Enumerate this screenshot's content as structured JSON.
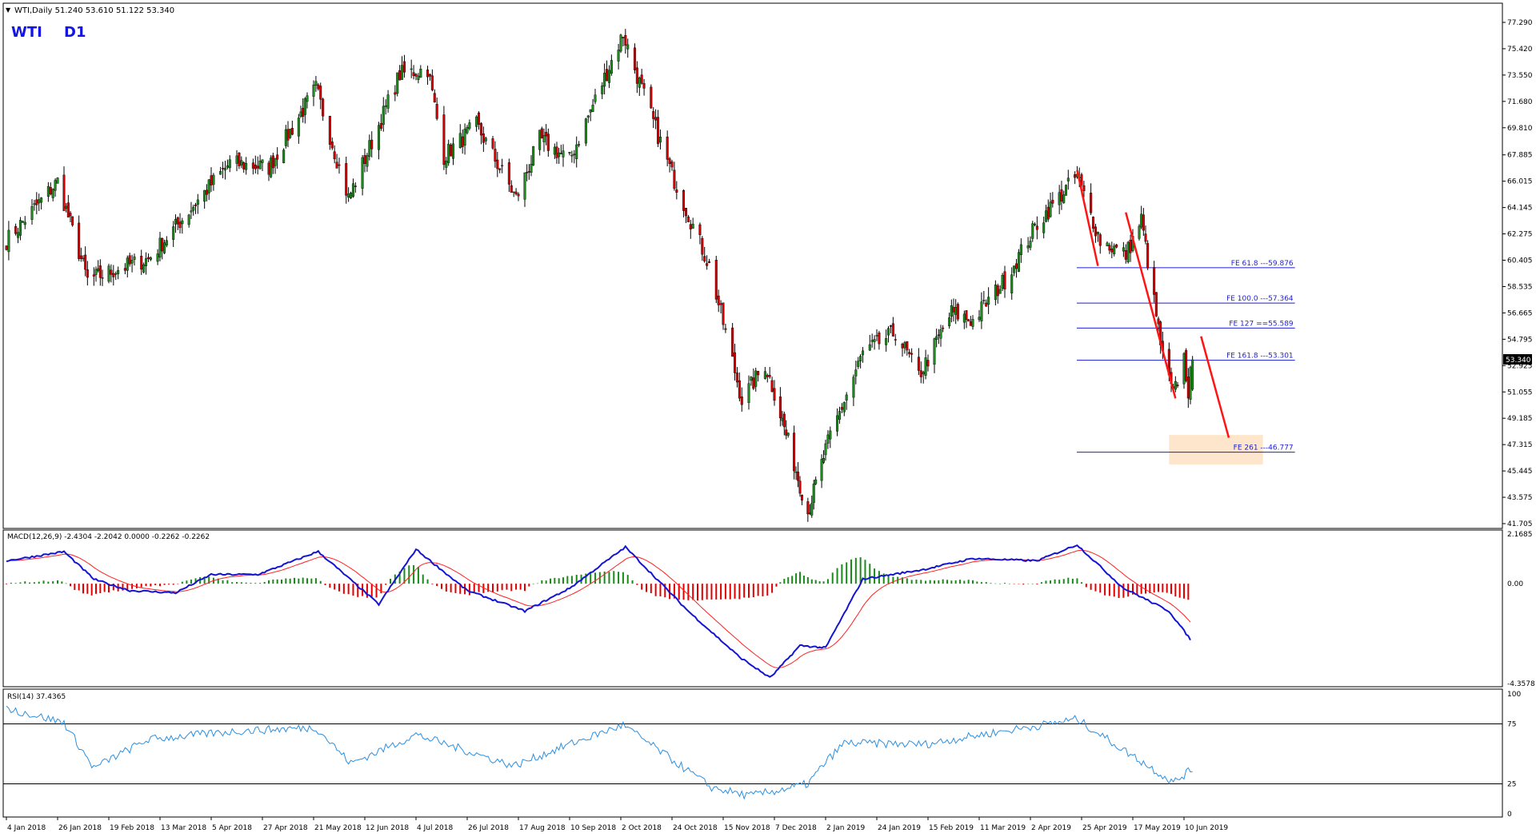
{
  "header": {
    "symbol_line": "WTI,Daily  51.240 53.610 51.122 53.340",
    "big_label_symbol": "WTI",
    "big_label_timeframe": "D1"
  },
  "colors": {
    "bull": "#1a8a1a",
    "bear": "#d40000",
    "wick": "#000000",
    "fib_line": "#1e1ed0",
    "fib_text": "#1e1ed0",
    "arrow": "#ff1414",
    "target_zone": "#fde2c3",
    "macd_line": "#1414d2",
    "signal_line": "#ff2020",
    "hist_pos": "#1a8a1a",
    "hist_neg": "#e00000",
    "rsi_line": "#2b8fe0",
    "label_blue": "#1414e6",
    "price_tag_bg": "#000000",
    "price_tag_fg": "#ffffff"
  },
  "price_axis": {
    "ticks": [
      "77.290",
      "75.420",
      "73.550",
      "71.680",
      "69.810",
      "67.885",
      "66.015",
      "64.145",
      "62.275",
      "60.405",
      "58.535",
      "56.665",
      "54.795",
      "52.925",
      "51.055",
      "49.185",
      "47.315",
      "45.445",
      "43.575",
      "41.705"
    ],
    "current_price": "53.340"
  },
  "time_axis": {
    "labels": [
      "4 Jan 2018",
      "26 Jan 2018",
      "19 Feb 2018",
      "13 Mar 2018",
      "5 Apr 2018",
      "27 Apr 2018",
      "21 May 2018",
      "12 Jun 2018",
      "4 Jul 2018",
      "26 Jul 2018",
      "17 Aug 2018",
      "10 Sep 2018",
      "2 Oct 2018",
      "24 Oct 2018",
      "15 Nov 2018",
      "7 Dec 2018",
      "2 Jan 2019",
      "24 Jan 2019",
      "15 Feb 2019",
      "11 Mar 2019",
      "2 Apr 2019",
      "25 Apr 2019",
      "17 May 2019",
      "10 Jun 2019"
    ]
  },
  "fib_levels": [
    {
      "label": "FE 61.8 ---59.876",
      "price": 59.876
    },
    {
      "label": "FE 100.0 ---57.364",
      "price": 57.364
    },
    {
      "label": "FE 127 ==55.589",
      "price": 55.589
    },
    {
      "label": "FE 161.8 ---53.301",
      "price": 53.301
    },
    {
      "label": "FE 261 ---46.777",
      "price": 46.777
    }
  ],
  "macd": {
    "label": "MACD(12,26,9) -2.4304 -2.2042 0.0000 -0.2262 -0.2262",
    "ticks": [
      "2.1685",
      "0.00",
      "-4.3578"
    ]
  },
  "rsi": {
    "label": "RSI(14) 37.4365",
    "ticks": [
      "100",
      "75",
      "25",
      "0"
    ]
  },
  "chart_data": {
    "type": "candlestick",
    "title": "WTI,Daily",
    "ylim": [
      41.705,
      77.29
    ],
    "last_bar": {
      "open": 51.24,
      "high": 53.61,
      "low": 51.122,
      "close": 53.34
    },
    "swing_points": [
      {
        "date": "2018-01-04",
        "price": 61.8
      },
      {
        "date": "2018-01-26",
        "price": 66.0
      },
      {
        "date": "2018-02-09",
        "price": 59.0
      },
      {
        "date": "2018-03-08",
        "price": 60.5
      },
      {
        "date": "2018-04-13",
        "price": 67.3
      },
      {
        "date": "2018-04-30",
        "price": 67.0
      },
      {
        "date": "2018-05-22",
        "price": 72.6
      },
      {
        "date": "2018-06-05",
        "price": 64.8
      },
      {
        "date": "2018-06-27",
        "price": 73.6
      },
      {
        "date": "2018-07-09",
        "price": 74.0
      },
      {
        "date": "2018-07-16",
        "price": 67.8
      },
      {
        "date": "2018-07-30",
        "price": 70.0
      },
      {
        "date": "2018-08-16",
        "price": 64.8
      },
      {
        "date": "2018-08-27",
        "price": 69.0
      },
      {
        "date": "2018-09-10",
        "price": 67.5
      },
      {
        "date": "2018-10-03",
        "price": 76.5
      },
      {
        "date": "2018-10-10",
        "price": 73.0
      },
      {
        "date": "2018-10-24",
        "price": 66.5
      },
      {
        "date": "2018-11-09",
        "price": 60.0
      },
      {
        "date": "2018-11-23",
        "price": 50.5
      },
      {
        "date": "2018-12-03",
        "price": 53.0
      },
      {
        "date": "2018-12-24",
        "price": 42.5
      },
      {
        "date": "2019-01-04",
        "price": 47.9
      },
      {
        "date": "2019-01-18",
        "price": 53.8
      },
      {
        "date": "2019-02-01",
        "price": 55.3
      },
      {
        "date": "2019-02-11",
        "price": 52.2
      },
      {
        "date": "2019-02-26",
        "price": 56.7
      },
      {
        "date": "2019-03-08",
        "price": 56.1
      },
      {
        "date": "2019-03-22",
        "price": 59.0
      },
      {
        "date": "2019-04-05",
        "price": 63.0
      },
      {
        "date": "2019-04-23",
        "price": 66.4
      },
      {
        "date": "2019-05-03",
        "price": 61.8
      },
      {
        "date": "2019-05-14",
        "price": 60.8
      },
      {
        "date": "2019-05-21",
        "price": 63.3
      },
      {
        "date": "2019-05-31",
        "price": 53.5
      },
      {
        "date": "2019-06-05",
        "price": 50.8
      },
      {
        "date": "2019-06-10",
        "price": 53.5
      },
      {
        "date": "2019-06-12",
        "price": 51.1
      },
      {
        "date": "2019-06-14",
        "price": 53.34
      }
    ],
    "projection_arrows": [
      {
        "from": {
          "date": "2019-04-23",
          "price": 66.8
        },
        "to": {
          "date": "2019-05-02",
          "price": 60.0
        }
      },
      {
        "from": {
          "date": "2019-05-14",
          "price": 63.8
        },
        "to": {
          "date": "2019-06-06",
          "price": 50.6
        }
      },
      {
        "from": {
          "date": "2019-06-18",
          "price": 55.0
        },
        "to": {
          "date": "2019-07-01",
          "price": 47.8
        }
      }
    ],
    "target_zone": {
      "from_date": "2019-06-03",
      "to_date": "2019-07-17",
      "price_top": 48.0,
      "price_bottom": 45.9
    },
    "macd_path": [
      {
        "date": "2018-01-04",
        "macd": 1.0
      },
      {
        "date": "2018-01-29",
        "macd": 1.4
      },
      {
        "date": "2018-02-12",
        "macd": 0.2
      },
      {
        "date": "2018-02-28",
        "macd": -0.3
      },
      {
        "date": "2018-03-20",
        "macd": -0.4
      },
      {
        "date": "2018-04-05",
        "macd": 0.4
      },
      {
        "date": "2018-04-25",
        "macd": 0.4
      },
      {
        "date": "2018-05-23",
        "macd": 1.4
      },
      {
        "date": "2018-06-18",
        "macd": -0.9
      },
      {
        "date": "2018-07-04",
        "macd": 1.5
      },
      {
        "date": "2018-07-26",
        "macd": -0.3
      },
      {
        "date": "2018-08-20",
        "macd": -1.2
      },
      {
        "date": "2018-09-10",
        "macd": -0.2
      },
      {
        "date": "2018-10-04",
        "macd": 1.6
      },
      {
        "date": "2018-10-31",
        "macd": -1.2
      },
      {
        "date": "2018-11-22",
        "macd": -3.2
      },
      {
        "date": "2018-12-05",
        "macd": -4.1
      },
      {
        "date": "2018-12-20",
        "macd": -2.7
      },
      {
        "date": "2019-01-02",
        "macd": -2.8
      },
      {
        "date": "2019-01-18",
        "macd": 0.2
      },
      {
        "date": "2019-02-12",
        "macd": 0.6
      },
      {
        "date": "2019-03-08",
        "macd": 1.1
      },
      {
        "date": "2019-04-05",
        "macd": 1.0
      },
      {
        "date": "2019-04-23",
        "macd": 1.7
      },
      {
        "date": "2019-05-13",
        "macd": -0.2
      },
      {
        "date": "2019-06-03",
        "macd": -1.2
      },
      {
        "date": "2019-06-13",
        "macd": -2.43
      }
    ],
    "rsi_path": [
      {
        "date": "2018-01-04",
        "rsi": 88
      },
      {
        "date": "2018-01-29",
        "rsi": 76
      },
      {
        "date": "2018-02-12",
        "rsi": 38
      },
      {
        "date": "2018-03-08",
        "rsi": 62
      },
      {
        "date": "2018-04-16",
        "rsi": 69
      },
      {
        "date": "2018-05-22",
        "rsi": 72
      },
      {
        "date": "2018-06-06",
        "rsi": 42
      },
      {
        "date": "2018-07-04",
        "rsi": 66
      },
      {
        "date": "2018-08-15",
        "rsi": 40
      },
      {
        "date": "2018-10-03",
        "rsi": 74
      },
      {
        "date": "2018-11-10",
        "rsi": 22
      },
      {
        "date": "2018-11-26",
        "rsi": 15
      },
      {
        "date": "2018-12-24",
        "rsi": 25
      },
      {
        "date": "2019-01-10",
        "rsi": 59
      },
      {
        "date": "2019-02-14",
        "rsi": 58
      },
      {
        "date": "2019-04-23",
        "rsi": 79
      },
      {
        "date": "2019-05-14",
        "rsi": 52
      },
      {
        "date": "2019-06-05",
        "rsi": 26
      },
      {
        "date": "2019-06-14",
        "rsi": 37.44
      }
    ]
  }
}
